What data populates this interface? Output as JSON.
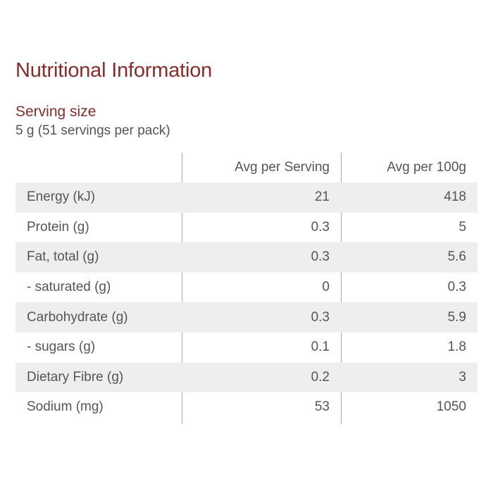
{
  "title": "Nutritional Information",
  "serving": {
    "label": "Serving size",
    "value": "5 g (51 servings per pack)"
  },
  "table": {
    "headers": [
      "",
      "Avg per Serving",
      "Avg per 100g"
    ],
    "rows": [
      {
        "name": "Energy (kJ)",
        "per_serving": "21",
        "per_100g": "418"
      },
      {
        "name": "Protein (g)",
        "per_serving": "0.3",
        "per_100g": "5"
      },
      {
        "name": "Fat, total (g)",
        "per_serving": "0.3",
        "per_100g": "5.6"
      },
      {
        "name": "- saturated (g)",
        "per_serving": "0",
        "per_100g": "0.3"
      },
      {
        "name": "Carbohydrate (g)",
        "per_serving": "0.3",
        "per_100g": "5.9"
      },
      {
        "name": "- sugars (g)",
        "per_serving": "0.1",
        "per_100g": "1.8"
      },
      {
        "name": "Dietary Fibre (g)",
        "per_serving": "0.2",
        "per_100g": "3"
      },
      {
        "name": "Sodium (mg)",
        "per_serving": "53",
        "per_100g": "1050"
      }
    ]
  },
  "colors": {
    "accent": "#8a2b2b",
    "text": "#555555",
    "row_shade": "#eeeeee",
    "divider": "#aaaaaa"
  }
}
